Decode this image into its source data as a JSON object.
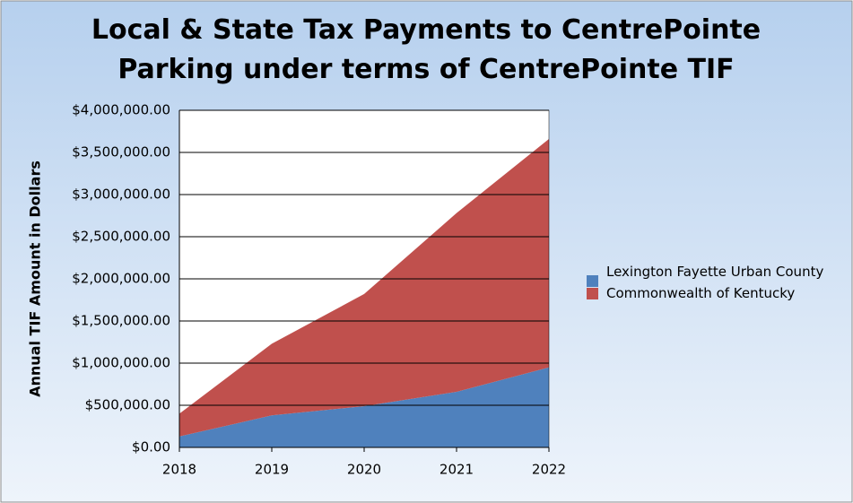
{
  "chart_data": {
    "type": "area",
    "title": "Local & State Tax Payments to CentrePointe Parking under terms of CentrePointe TIF",
    "y_label": "Annual TIF Amount in Dollars",
    "stacked": true,
    "categories": [
      "2018",
      "2019",
      "2020",
      "2021",
      "2022"
    ],
    "series": [
      {
        "name": "Lexington Fayette Urban County",
        "color": "#4f81bd",
        "values": [
          130000,
          380000,
          490000,
          660000,
          950000
        ]
      },
      {
        "name": "Commonwealth of Kentucky",
        "color": "#c0504d",
        "values": [
          270000,
          850000,
          1330000,
          2120000,
          2710000
        ]
      }
    ],
    "ylim": [
      0,
      4000000
    ],
    "yticks": [
      {
        "value": 0,
        "label": "$0.00"
      },
      {
        "value": 500000,
        "label": "$500,000.00"
      },
      {
        "value": 1000000,
        "label": "$1,000,000.00"
      },
      {
        "value": 1500000,
        "label": "$1,500,000.00"
      },
      {
        "value": 2000000,
        "label": "$2,000,000.00"
      },
      {
        "value": 2500000,
        "label": "$2,500,000.00"
      },
      {
        "value": 3000000,
        "label": "$3,000,000.00"
      },
      {
        "value": 3500000,
        "label": "$3,500,000.00"
      },
      {
        "value": 4000000,
        "label": "$4,000,000.00"
      }
    ],
    "grid": true,
    "legend": "right"
  }
}
